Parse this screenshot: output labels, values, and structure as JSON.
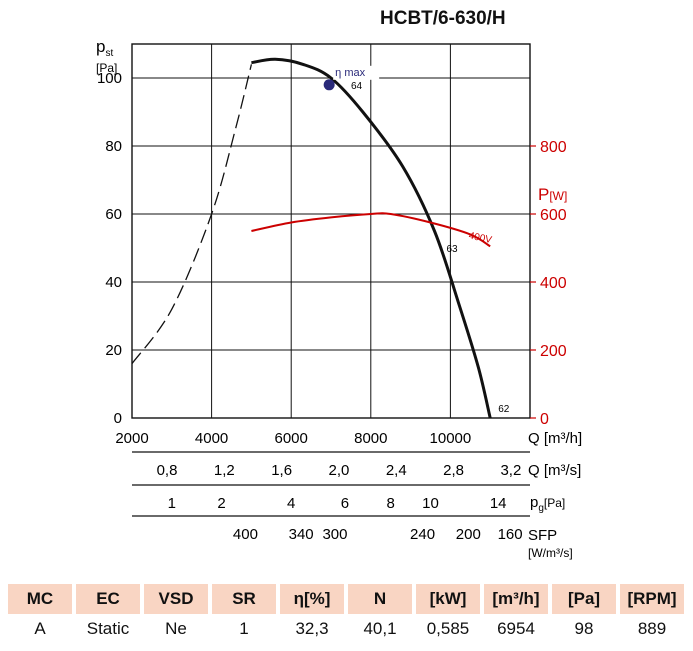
{
  "title": "HCBT/6-630/H",
  "chart_data": {
    "type": "line",
    "title": "HCBT/6-630/H",
    "xlabel": "Q [m³/h]",
    "xlim": [
      2000,
      12000
    ],
    "x_ticks": [
      "2000",
      "4000",
      "6000",
      "8000",
      "10000"
    ],
    "y_left": {
      "label_main": "p",
      "label_sub": "st",
      "unit": "[Pa]",
      "lim": [
        0,
        110
      ],
      "ticks": [
        "0",
        "20",
        "40",
        "60",
        "80",
        "100"
      ]
    },
    "y_right": {
      "label_main": "P",
      "unit": "[W]",
      "lim": [
        0,
        1100
      ],
      "ticks": [
        "0",
        "200",
        "400",
        "600",
        "800"
      ],
      "color": "#cc0000"
    },
    "grid": true,
    "series": [
      {
        "name": "",
        "axis": "left",
        "style": "dashed",
        "color": "#111111",
        "points": [
          [
            2000,
            16
          ],
          [
            3000,
            32
          ],
          [
            4000,
            60
          ],
          [
            4600,
            85
          ],
          [
            5000,
            104
          ]
        ]
      },
      {
        "name": "",
        "axis": "left",
        "style": "solid",
        "color": "#111111",
        "points": [
          [
            5000,
            104.5
          ],
          [
            5600,
            105.5
          ],
          [
            6300,
            104
          ],
          [
            7000,
            100
          ],
          [
            7800,
            90
          ],
          [
            8800,
            74
          ],
          [
            9600,
            55
          ],
          [
            10200,
            34
          ],
          [
            10700,
            15
          ],
          [
            11000,
            0
          ]
        ]
      },
      {
        "name": "400V",
        "axis": "right",
        "style": "solid",
        "color": "#cc0000",
        "points": [
          [
            5000,
            550
          ],
          [
            6000,
            575
          ],
          [
            7000,
            590
          ],
          [
            8000,
            600
          ],
          [
            8500,
            600
          ],
          [
            9500,
            575
          ],
          [
            10500,
            540
          ],
          [
            11000,
            505
          ]
        ]
      }
    ],
    "point_labels": [
      {
        "text": "64",
        "x": 7300,
        "y": 98
      },
      {
        "text": "63",
        "x": 9700,
        "y": 50
      },
      {
        "text": "62",
        "x": 11000,
        "y": 3
      }
    ],
    "marker": {
      "label": "η max",
      "x": 6954,
      "y": 98,
      "color": "#2a2a7a"
    },
    "scales": [
      {
        "label": "Q [m³/s]",
        "values": [
          "0,8",
          "1,2",
          "1,6",
          "2,0",
          "2,4",
          "2,8",
          "3,2"
        ],
        "x": [
          2880,
          4320,
          5760,
          7200,
          8640,
          10080,
          11520
        ]
      },
      {
        "label_main": "p",
        "label_sub": "g",
        "label_unit": "[Pa]",
        "values": [
          "1",
          "2",
          "4",
          "6",
          "8",
          "10",
          "14"
        ],
        "x": [
          3000,
          4250,
          6000,
          7350,
          8500,
          9500,
          11200
        ]
      },
      {
        "label": "SFP",
        "label_unit": "[W/m³/s]",
        "values": [
          "400",
          "340",
          "300",
          "240",
          "200",
          "160"
        ],
        "x": [
          4850,
          6250,
          7100,
          9300,
          10450,
          11500
        ]
      }
    ]
  },
  "table": {
    "headers": [
      "MC",
      "EC",
      "VSD",
      "SR",
      "η[%]",
      "N",
      "[kW]",
      "[m³/h]",
      "[Pa]",
      "[RPM]"
    ],
    "row": [
      "A",
      "Static",
      "Ne",
      "1",
      "32,3",
      "40,1",
      "0,585",
      "6954",
      "98",
      "889"
    ]
  }
}
